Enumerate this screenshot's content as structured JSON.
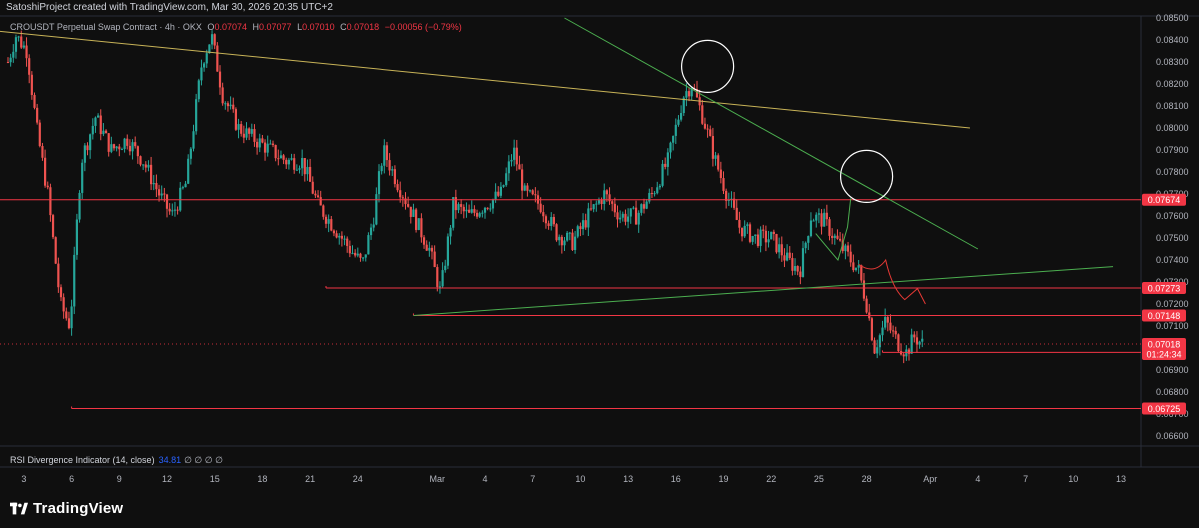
{
  "header": {
    "text": "SatoshiProject created with TradingView.com, Mar 30, 2026 20:35 UTC+2"
  },
  "legend": {
    "symbol": "CROUSDT Perpetual Swap Contract · 4h · OKX",
    "o_label": "O",
    "o": "0.07074",
    "h_label": "H",
    "h": "0.07077",
    "l_label": "L",
    "l": "0.07010",
    "c_label": "C",
    "c": "0.07018",
    "change": "−0.00056 (−0.79%)"
  },
  "rsi": {
    "label": "RSI Divergence Indicator (14, close)",
    "value": "34.81",
    "symbols": "∅ ∅ ∅ ∅"
  },
  "footer": {
    "brand": "TradingView"
  },
  "colors": {
    "background": "#0f0f0f",
    "up": "#26a69a",
    "down": "#ef5350",
    "level_line": "#f23645",
    "trendline_yellow": "#c9b458",
    "trendline_green": "#4caf50",
    "circle": "#ffffff"
  },
  "chart_data": {
    "type": "candlestick",
    "symbol": "CROUSDT",
    "timeframe": "4h",
    "ylim": [
      0.0655,
      0.085
    ],
    "y_tick_labels": [
      "0.08500",
      "0.08400",
      "0.08300",
      "0.08200",
      "0.08100",
      "0.08000",
      "0.07900",
      "0.07800",
      "0.07700",
      "0.07600",
      "0.07500",
      "0.07400",
      "0.07300",
      "0.07200",
      "0.07100",
      "0.06900",
      "0.06800",
      "0.06700",
      "0.06600"
    ],
    "x_tick_labels": [
      {
        "label": "3",
        "d": 3
      },
      {
        "label": "6",
        "d": 6
      },
      {
        "label": "9",
        "d": 9
      },
      {
        "label": "12",
        "d": 12
      },
      {
        "label": "15",
        "d": 15
      },
      {
        "label": "18",
        "d": 18
      },
      {
        "label": "21",
        "d": 21
      },
      {
        "label": "24",
        "d": 24
      },
      {
        "label": "Mar",
        "d": 29
      },
      {
        "label": "4",
        "d": 32
      },
      {
        "label": "7",
        "d": 35
      },
      {
        "label": "10",
        "d": 38
      },
      {
        "label": "13",
        "d": 41
      },
      {
        "label": "16",
        "d": 44
      },
      {
        "label": "19",
        "d": 47
      },
      {
        "label": "22",
        "d": 50
      },
      {
        "label": "25",
        "d": 53
      },
      {
        "label": "28",
        "d": 56
      },
      {
        "label": "Apr",
        "d": 60
      },
      {
        "label": "4",
        "d": 63
      },
      {
        "label": "7",
        "d": 66
      },
      {
        "label": "10",
        "d": 69
      },
      {
        "label": "13",
        "d": 72
      }
    ],
    "price_path": [
      {
        "d": 2.0,
        "p": 0.083
      },
      {
        "d": 2.5,
        "p": 0.0842
      },
      {
        "d": 3.2,
        "p": 0.0835
      },
      {
        "d": 3.8,
        "p": 0.08
      },
      {
        "d": 4.5,
        "p": 0.077
      },
      {
        "d": 5.3,
        "p": 0.072
      },
      {
        "d": 5.9,
        "p": 0.071
      },
      {
        "d": 6.6,
        "p": 0.0785
      },
      {
        "d": 7.5,
        "p": 0.0805
      },
      {
        "d": 8.5,
        "p": 0.079
      },
      {
        "d": 9.5,
        "p": 0.0795
      },
      {
        "d": 10.5,
        "p": 0.0785
      },
      {
        "d": 11.5,
        "p": 0.077
      },
      {
        "d": 12.3,
        "p": 0.076
      },
      {
        "d": 13.2,
        "p": 0.0775
      },
      {
        "d": 14.2,
        "p": 0.083
      },
      {
        "d": 14.8,
        "p": 0.0842
      },
      {
        "d": 15.5,
        "p": 0.0815
      },
      {
        "d": 16.5,
        "p": 0.08
      },
      {
        "d": 17.5,
        "p": 0.0795
      },
      {
        "d": 18.5,
        "p": 0.079
      },
      {
        "d": 19.5,
        "p": 0.0785
      },
      {
        "d": 20.5,
        "p": 0.0785
      },
      {
        "d": 21.5,
        "p": 0.0765
      },
      {
        "d": 22.5,
        "p": 0.0755
      },
      {
        "d": 23.5,
        "p": 0.0745
      },
      {
        "d": 24.3,
        "p": 0.0738
      },
      {
        "d": 25.0,
        "p": 0.076
      },
      {
        "d": 25.6,
        "p": 0.079
      },
      {
        "d": 26.5,
        "p": 0.0775
      },
      {
        "d": 27.5,
        "p": 0.076
      },
      {
        "d": 28.5,
        "p": 0.0745
      },
      {
        "d": 29.2,
        "p": 0.0725
      },
      {
        "d": 30.0,
        "p": 0.0765
      },
      {
        "d": 31.0,
        "p": 0.076
      },
      {
        "d": 32.0,
        "p": 0.0765
      },
      {
        "d": 33.0,
        "p": 0.077
      },
      {
        "d": 33.8,
        "p": 0.079
      },
      {
        "d": 34.5,
        "p": 0.077
      },
      {
        "d": 35.5,
        "p": 0.0765
      },
      {
        "d": 36.5,
        "p": 0.0752
      },
      {
        "d": 37.5,
        "p": 0.0748
      },
      {
        "d": 38.5,
        "p": 0.076
      },
      {
        "d": 39.5,
        "p": 0.077
      },
      {
        "d": 40.5,
        "p": 0.076
      },
      {
        "d": 41.5,
        "p": 0.076
      },
      {
        "d": 42.5,
        "p": 0.077
      },
      {
        "d": 43.5,
        "p": 0.0785
      },
      {
        "d": 44.5,
        "p": 0.0815
      },
      {
        "d": 45.0,
        "p": 0.082
      },
      {
        "d": 45.7,
        "p": 0.0805
      },
      {
        "d": 46.5,
        "p": 0.0785
      },
      {
        "d": 47.2,
        "p": 0.077
      },
      {
        "d": 48.0,
        "p": 0.0755
      },
      {
        "d": 49.0,
        "p": 0.075
      },
      {
        "d": 50.0,
        "p": 0.075
      },
      {
        "d": 51.0,
        "p": 0.074
      },
      {
        "d": 51.8,
        "p": 0.0735
      },
      {
        "d": 52.5,
        "p": 0.076
      },
      {
        "d": 53.3,
        "p": 0.0758
      },
      {
        "d": 54.0,
        "p": 0.075
      },
      {
        "d": 54.8,
        "p": 0.0742
      },
      {
        "d": 55.5,
        "p": 0.0735
      },
      {
        "d": 56.0,
        "p": 0.072
      },
      {
        "d": 56.5,
        "p": 0.07
      },
      {
        "d": 57.2,
        "p": 0.0712
      },
      {
        "d": 58.0,
        "p": 0.0702
      },
      {
        "d": 58.5,
        "p": 0.0698
      },
      {
        "d": 59.0,
        "p": 0.0705
      },
      {
        "d": 59.5,
        "p": 0.0702
      }
    ],
    "horizontal_levels": [
      {
        "price": 0.07674,
        "label": "0.07674",
        "from_d": 0.0
      },
      {
        "price": 0.07273,
        "label": "0.07273",
        "from_d": 22.0
      },
      {
        "price": 0.07148,
        "label": "0.07148",
        "from_d": 27.5
      },
      {
        "price": 0.0698,
        "label": "0.06980",
        "from_d": 57.0
      },
      {
        "price": 0.06725,
        "label": "0.06725",
        "from_d": 6.0
      }
    ],
    "current_price": {
      "price": 0.07018,
      "label": "0.07018",
      "countdown": "01:24:34"
    },
    "trendlines": [
      {
        "color": "yellow",
        "from": {
          "d": 0.0,
          "p": 0.0845
        },
        "to": {
          "d": 62.5,
          "p": 0.08
        }
      },
      {
        "color": "green",
        "from": {
          "d": 37.0,
          "p": 0.085
        },
        "to": {
          "d": 63.0,
          "p": 0.0745
        }
      },
      {
        "color": "green",
        "from": {
          "d": 27.5,
          "p": 0.07148
        },
        "to": {
          "d": 71.5,
          "p": 0.0737
        }
      }
    ],
    "circles": [
      {
        "d": 46.0,
        "p": 0.0828
      },
      {
        "d": 56.0,
        "p": 0.0778
      }
    ]
  }
}
